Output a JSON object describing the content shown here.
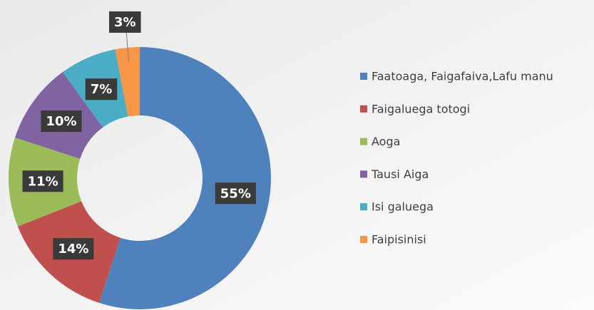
{
  "chart_data": {
    "type": "donut",
    "categories": [
      "Faatoaga, Faigafaiva,Lafu manu",
      "Faigaluega totogi",
      "Aoga",
      "Tausi Aiga",
      "Isi galuega",
      "Faipisinisi"
    ],
    "values": [
      55,
      14,
      11,
      10,
      7,
      3
    ],
    "value_labels": [
      "55%",
      "14%",
      "11%",
      "10%",
      "7%",
      "3%"
    ],
    "colors": [
      "#4f81bd",
      "#c0504d",
      "#9bbb59",
      "#8064a2",
      "#4bacc6",
      "#f79646"
    ],
    "legend": "right"
  }
}
